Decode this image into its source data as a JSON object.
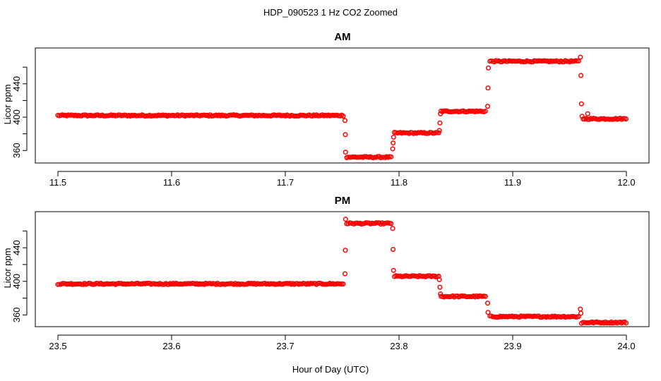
{
  "figure": {
    "title": "HDP_090523  1 Hz CO2 Zoomed",
    "xlabel": "Hour of Day (UTC)"
  },
  "colors": {
    "points": "#ff0000",
    "axes": "#000000"
  },
  "chart_data": [
    {
      "type": "scatter",
      "title": "AM",
      "xlabel": "Hour of Day (UTC)",
      "ylabel": "Licor ppm",
      "xlim": [
        11.5,
        12.0
      ],
      "ylim": [
        345,
        483
      ],
      "xticks": [
        "11.5",
        "11.6",
        "11.7",
        "11.8",
        "11.9",
        "12.0"
      ],
      "yticks": [
        "360",
        "400",
        "440"
      ],
      "grid": false,
      "legend": "none",
      "segments": [
        {
          "x_start": 11.5,
          "x_end": 11.752,
          "y": 402
        },
        {
          "x_start": 11.754,
          "x_end": 11.793,
          "y": 352
        },
        {
          "x_start": 11.796,
          "x_end": 11.835,
          "y": 381
        },
        {
          "x_start": 11.837,
          "x_end": 11.877,
          "y": 407
        },
        {
          "x_start": 11.88,
          "x_end": 11.958,
          "y": 467
        },
        {
          "x_start": 11.962,
          "x_end": 12.0,
          "y": 398
        }
      ],
      "transition_points": [
        {
          "x": 11.7525,
          "y": 396
        },
        {
          "x": 11.7528,
          "y": 379
        },
        {
          "x": 11.753,
          "y": 358
        },
        {
          "x": 11.7945,
          "y": 362
        },
        {
          "x": 11.7948,
          "y": 369
        },
        {
          "x": 11.7952,
          "y": 376
        },
        {
          "x": 11.8355,
          "y": 384
        },
        {
          "x": 11.836,
          "y": 393
        },
        {
          "x": 11.8365,
          "y": 404
        },
        {
          "x": 11.878,
          "y": 413
        },
        {
          "x": 11.8783,
          "y": 435
        },
        {
          "x": 11.8786,
          "y": 459
        },
        {
          "x": 11.9595,
          "y": 472
        },
        {
          "x": 11.96,
          "y": 450
        },
        {
          "x": 11.9605,
          "y": 416
        },
        {
          "x": 11.961,
          "y": 401
        },
        {
          "x": 11.966,
          "y": 404
        }
      ]
    },
    {
      "type": "scatter",
      "title": "PM",
      "xlabel": "Hour of Day (UTC)",
      "ylabel": "Licor ppm",
      "xlim": [
        23.5,
        24.0
      ],
      "ylim": [
        346,
        483
      ],
      "xticks": [
        "23.5",
        "23.6",
        "23.7",
        "23.8",
        "23.9",
        "24.0"
      ],
      "yticks": [
        "360",
        "400",
        "440"
      ],
      "grid": false,
      "legend": "none",
      "segments": [
        {
          "x_start": 23.5,
          "x_end": 23.752,
          "y": 397
        },
        {
          "x_start": 23.754,
          "x_end": 23.793,
          "y": 469
        },
        {
          "x_start": 23.796,
          "x_end": 23.835,
          "y": 406
        },
        {
          "x_start": 23.837,
          "x_end": 23.877,
          "y": 382
        },
        {
          "x_start": 23.88,
          "x_end": 23.958,
          "y": 358
        },
        {
          "x_start": 23.962,
          "x_end": 24.0,
          "y": 351
        }
      ],
      "transition_points": [
        {
          "x": 23.7525,
          "y": 409
        },
        {
          "x": 23.7528,
          "y": 437
        },
        {
          "x": 23.753,
          "y": 474
        },
        {
          "x": 23.7945,
          "y": 463
        },
        {
          "x": 23.7948,
          "y": 438
        },
        {
          "x": 23.7952,
          "y": 413
        },
        {
          "x": 23.8355,
          "y": 402
        },
        {
          "x": 23.836,
          "y": 393
        },
        {
          "x": 23.8365,
          "y": 385
        },
        {
          "x": 23.878,
          "y": 374
        },
        {
          "x": 23.8783,
          "y": 363
        },
        {
          "x": 23.9595,
          "y": 367
        },
        {
          "x": 23.96,
          "y": 362
        },
        {
          "x": 23.9605,
          "y": 350
        }
      ]
    }
  ]
}
